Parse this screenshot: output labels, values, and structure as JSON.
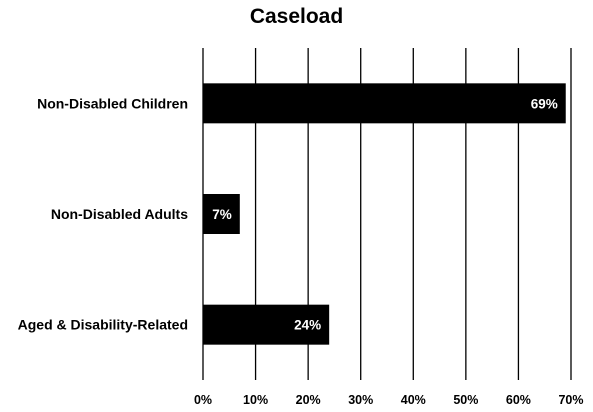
{
  "chart_data": {
    "type": "bar",
    "orientation": "horizontal",
    "title": "Caseload",
    "xlabel": "",
    "ylabel": "",
    "categories": [
      "Non-Disabled Children",
      "Non-Disabled Adults",
      "Aged & Disability-Related"
    ],
    "values": [
      69,
      7,
      24
    ],
    "data_labels": [
      "69%",
      "7%",
      "24%"
    ],
    "xlim": [
      0,
      70
    ],
    "x_ticks": [
      0,
      10,
      20,
      30,
      40,
      50,
      60,
      70
    ],
    "x_tick_labels": [
      "0%",
      "10%",
      "20%",
      "30%",
      "40%",
      "50%",
      "60%",
      "70%"
    ],
    "grid": "vertical",
    "legend": "none",
    "bar_color": "#000000",
    "grid_color": "#000000",
    "label_color": "#ffffff"
  }
}
